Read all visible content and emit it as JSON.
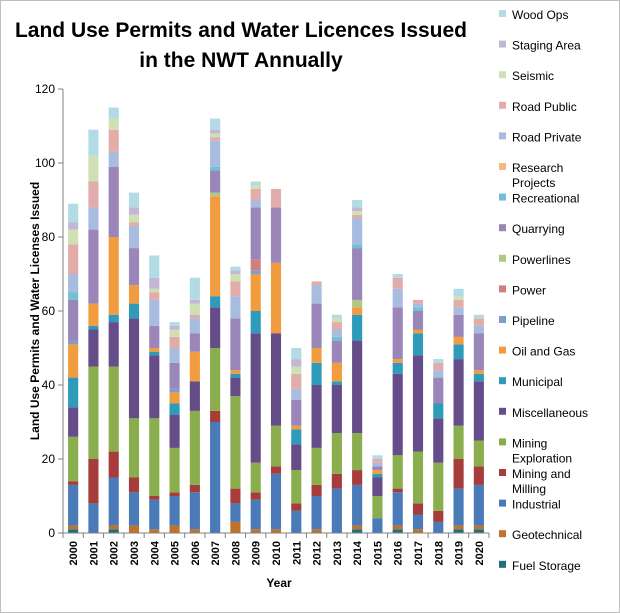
{
  "chart_data": {
    "type": "bar",
    "stacked": true,
    "title_lines": [
      "Land Use Permits and Water Licences Issued",
      "in the NWT Annually"
    ],
    "xlabel": "Year",
    "ylabel": "Land Use Permits and Water Licenses Issued",
    "ylim": [
      0,
      120
    ],
    "yticks": [
      0,
      20,
      40,
      60,
      80,
      100,
      120
    ],
    "grid": false,
    "legend_position": "right",
    "categories": [
      "2000",
      "2001",
      "2002",
      "2003",
      "2004",
      "2005",
      "2006",
      "2007",
      "2008",
      "2009",
      "2010",
      "2011",
      "2012",
      "2013",
      "2014",
      "2015",
      "2016",
      "2017",
      "2018",
      "2019",
      "2020"
    ],
    "series": [
      {
        "name": "Fuel Storage",
        "color": "#1f6f7f",
        "values": [
          1,
          0,
          1,
          0,
          0,
          0,
          0,
          0,
          0,
          0,
          0,
          0,
          0,
          0,
          1,
          0,
          1,
          0,
          0,
          1,
          1
        ]
      },
      {
        "name": "Geotechnical",
        "color": "#c0712a",
        "values": [
          1,
          0,
          1,
          2,
          1,
          2,
          1,
          0,
          3,
          1,
          1,
          0,
          1,
          0,
          1,
          0,
          1,
          1,
          0,
          1,
          1
        ]
      },
      {
        "name": "Industrial",
        "color": "#4a7ab8",
        "values": [
          11,
          8,
          13,
          9,
          8,
          8,
          10,
          30,
          5,
          8,
          15,
          6,
          9,
          12,
          11,
          4,
          9,
          4,
          3,
          10,
          11
        ]
      },
      {
        "name": "Mining and Milling",
        "color": "#a63d3a",
        "values": [
          1,
          12,
          7,
          4,
          1,
          1,
          2,
          3,
          4,
          2,
          2,
          2,
          3,
          4,
          4,
          0,
          1,
          3,
          3,
          8,
          5
        ]
      },
      {
        "name": "Mining Exploration",
        "color": "#8aad4e",
        "values": [
          12,
          25,
          23,
          16,
          21,
          12,
          20,
          17,
          25,
          8,
          11,
          9,
          10,
          11,
          10,
          6,
          9,
          14,
          13,
          9,
          7
        ]
      },
      {
        "name": "Miscellaneous",
        "color": "#654d8a",
        "values": [
          8,
          10,
          12,
          27,
          17,
          9,
          8,
          11,
          5,
          35,
          25,
          7,
          17,
          13,
          25,
          5,
          22,
          26,
          12,
          18,
          16
        ]
      },
      {
        "name": "Municipal",
        "color": "#2e9bbb",
        "values": [
          8,
          1,
          2,
          4,
          1,
          3,
          0,
          3,
          1,
          6,
          0,
          4,
          6,
          1,
          7,
          1,
          3,
          6,
          4,
          4,
          2
        ]
      },
      {
        "name": "Oil and Gas",
        "color": "#f19c3e",
        "values": [
          9,
          6,
          21,
          5,
          1,
          3,
          8,
          27,
          1,
          10,
          19,
          1,
          4,
          5,
          2,
          1,
          1,
          1,
          0,
          2,
          1
        ]
      },
      {
        "name": "Pipeline",
        "color": "#7e9ccd",
        "values": [
          1,
          0,
          0,
          0,
          0,
          1,
          0,
          0,
          0,
          1,
          0,
          0,
          0,
          0,
          0,
          0,
          0,
          0,
          0,
          0,
          0
        ]
      },
      {
        "name": "Power",
        "color": "#cf7f7d",
        "values": [
          0,
          0,
          0,
          0,
          0,
          0,
          0,
          0,
          0,
          3,
          0,
          0,
          0,
          0,
          0,
          0,
          0,
          0,
          0,
          0,
          0
        ]
      },
      {
        "name": "Powerlines",
        "color": "#b0c880",
        "values": [
          0,
          0,
          0,
          0,
          0,
          0,
          0,
          1,
          0,
          0,
          0,
          0,
          0,
          0,
          2,
          0,
          0,
          0,
          0,
          0,
          0
        ]
      },
      {
        "name": "Quarrying",
        "color": "#9a86b8",
        "values": [
          11,
          20,
          19,
          10,
          6,
          7,
          5,
          6,
          14,
          14,
          15,
          7,
          12,
          6,
          14,
          1,
          14,
          5,
          7,
          6,
          10
        ]
      },
      {
        "name": "Recreational",
        "color": "#72c0d4",
        "values": [
          2,
          0,
          0,
          0,
          0,
          0,
          0,
          1,
          0,
          0,
          0,
          0,
          0,
          1,
          1,
          0,
          0,
          1,
          0,
          0,
          0
        ]
      },
      {
        "name": "Research Projects",
        "color": "#f4b983",
        "values": [
          0,
          0,
          0,
          0,
          0,
          0,
          0,
          0,
          0,
          0,
          0,
          0,
          0,
          0,
          0,
          0,
          0,
          0,
          0,
          0,
          0
        ]
      },
      {
        "name": "Road Private",
        "color": "#a8bcdf",
        "values": [
          5,
          6,
          4,
          6,
          7,
          4,
          4,
          7,
          6,
          2,
          0,
          3,
          5,
          2,
          7,
          1,
          5,
          1,
          2,
          2,
          2
        ]
      },
      {
        "name": "Road Public",
        "color": "#e2acab",
        "values": [
          8,
          7,
          6,
          1,
          2,
          3,
          1,
          1,
          4,
          3,
          5,
          4,
          1,
          2,
          1,
          1,
          3,
          1,
          2,
          2,
          2
        ]
      },
      {
        "name": "Seismic",
        "color": "#cfe0b4",
        "values": [
          4,
          7,
          3,
          2,
          1,
          2,
          3,
          1,
          2,
          1,
          0,
          2,
          0,
          1,
          1,
          0,
          0,
          0,
          0,
          1,
          0
        ]
      },
      {
        "name": "Staging Area",
        "color": "#c4b7d6",
        "values": [
          2,
          0,
          0,
          2,
          3,
          1,
          1,
          1,
          1,
          0,
          0,
          2,
          0,
          0,
          1,
          0,
          0,
          0,
          0,
          0,
          0
        ]
      },
      {
        "name": "Wood Ops",
        "color": "#b2dbe6",
        "values": [
          5,
          7,
          3,
          4,
          6,
          1,
          6,
          3,
          1,
          1,
          0,
          3,
          0,
          1,
          2,
          1,
          1,
          0,
          1,
          2,
          1
        ]
      }
    ]
  }
}
